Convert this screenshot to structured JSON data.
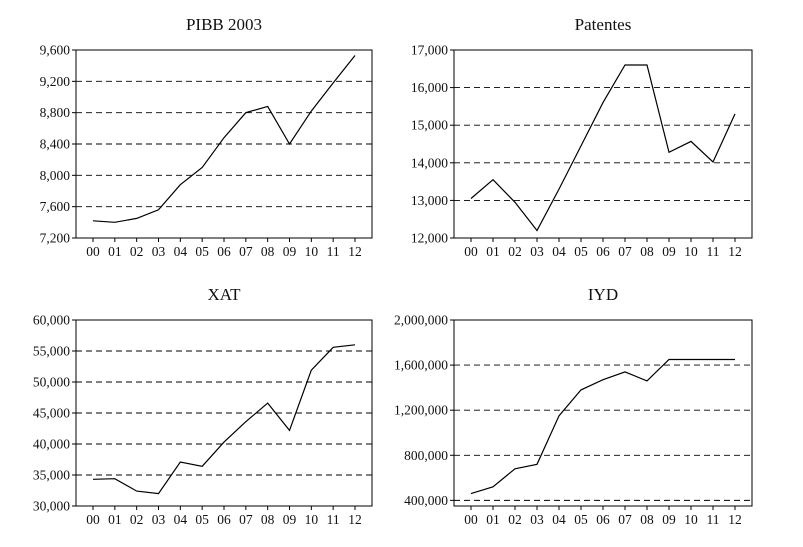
{
  "chart_data": [
    {
      "type": "line",
      "title": "PIBB 2003",
      "categories": [
        "00",
        "01",
        "02",
        "03",
        "04",
        "05",
        "06",
        "07",
        "08",
        "09",
        "10",
        "11",
        "12"
      ],
      "values": [
        7420,
        7400,
        7450,
        7560,
        7880,
        8100,
        8480,
        8800,
        8880,
        8400,
        8820,
        9180,
        9530
      ],
      "ylim": [
        7200,
        9600
      ],
      "yticks": [
        7200,
        7600,
        8000,
        8400,
        8800,
        9200,
        9600
      ],
      "ytick_labels": [
        "7,200",
        "7,600",
        "8,000",
        "8,400",
        "8,800",
        "9,200",
        "9,600"
      ],
      "grid": "horizontal dashed"
    },
    {
      "type": "line",
      "title": "Patentes",
      "categories": [
        "00",
        "01",
        "02",
        "03",
        "04",
        "05",
        "06",
        "07",
        "08",
        "09",
        "10",
        "11",
        "12"
      ],
      "values": [
        13050,
        13550,
        12950,
        12200,
        13300,
        14450,
        15600,
        16600,
        16600,
        14280,
        14570,
        14020,
        15300
      ],
      "ylim": [
        12000,
        17000
      ],
      "yticks": [
        12000,
        13000,
        14000,
        15000,
        16000,
        17000
      ],
      "ytick_labels": [
        "12,000",
        "13,000",
        "14,000",
        "15,000",
        "16,000",
        "17,000"
      ],
      "grid": "horizontal dashed"
    },
    {
      "type": "line",
      "title": "XAT",
      "categories": [
        "00",
        "01",
        "02",
        "03",
        "04",
        "05",
        "06",
        "07",
        "08",
        "09",
        "10",
        "11",
        "12"
      ],
      "values": [
        34300,
        34400,
        32400,
        32000,
        37100,
        36400,
        40300,
        43600,
        46600,
        42200,
        51900,
        55600,
        56000
      ],
      "ylim": [
        30000,
        60000
      ],
      "yticks": [
        30000,
        35000,
        40000,
        45000,
        50000,
        55000,
        60000
      ],
      "ytick_labels": [
        "30,000",
        "35,000",
        "40,000",
        "45,000",
        "50,000",
        "55,000",
        "60,000"
      ],
      "grid": "horizontal dashed"
    },
    {
      "type": "line",
      "title": "IYD",
      "categories": [
        "00",
        "01",
        "02",
        "03",
        "04",
        "05",
        "06",
        "07",
        "08",
        "09",
        "10",
        "11",
        "12"
      ],
      "values": [
        460000,
        520000,
        680000,
        720000,
        1150000,
        1380000,
        1470000,
        1540000,
        1460000,
        1650000,
        1650000,
        1650000,
        1650000
      ],
      "ylim": [
        350000,
        2000000
      ],
      "yticks": [
        400000,
        800000,
        1200000,
        1600000,
        2000000
      ],
      "ytick_labels": [
        "400,000",
        "800,000",
        "1,200,000",
        "1,600,000",
        "2,000,000"
      ],
      "grid": "horizontal dashed"
    }
  ]
}
